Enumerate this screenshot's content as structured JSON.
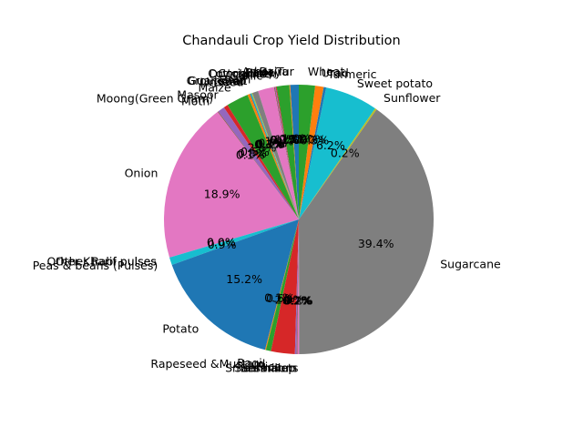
{
  "chart_data": {
    "type": "pie",
    "title": "Chandauli Crop Yield Distribution",
    "start_angle": 90,
    "direction": "counterclockwise",
    "slices": [
      {
        "label": "Arhar/Tur",
        "value": 1.0,
        "pct_label": "1.0%",
        "color": "#1f77b4"
      },
      {
        "label": "Bajra",
        "value": 0.1,
        "pct_label": "0.1%",
        "color": "#ff7f0e"
      },
      {
        "label": "Barley",
        "value": 1.5,
        "pct_label": "1.5%",
        "color": "#2ca02c"
      },
      {
        "label": "Coriander",
        "value": 0.1,
        "pct_label": "0.1%",
        "color": "#d62728"
      },
      {
        "label": "Cotton(lint)",
        "value": 0.1,
        "pct_label": "0.1%",
        "color": "#9467bd"
      },
      {
        "label": "Dry chillies",
        "value": 0.1,
        "pct_label": "0.1%",
        "color": "#8c564b"
      },
      {
        "label": "Garlic",
        "value": 1.9,
        "pct_label": "1.9%",
        "color": "#e377c2"
      },
      {
        "label": "Gram",
        "value": 0.7,
        "pct_label": "0.7%",
        "color": "#7f7f7f"
      },
      {
        "label": "Groundnut",
        "value": 0.1,
        "pct_label": "0.1%",
        "color": "#bcbd22"
      },
      {
        "label": "Guar seed",
        "value": 0.1,
        "pct_label": "0.1%",
        "color": "#17becf"
      },
      {
        "label": "Jowar",
        "value": 0.1,
        "pct_label": "0.1%",
        "color": "#1f77b4"
      },
      {
        "label": "Linseed",
        "value": 0.3,
        "pct_label": "0.3%",
        "color": "#ff7f0e"
      },
      {
        "label": "Maize",
        "value": 2.6,
        "pct_label": "2.6%",
        "color": "#2ca02c"
      },
      {
        "label": "Masoor",
        "value": 0.5,
        "pct_label": "0.5%",
        "color": "#d62728"
      },
      {
        "label": "Moong(Green Gram)",
        "value": 0.8,
        "pct_label": "0.8%",
        "color": "#9467bd"
      },
      {
        "label": "Moth",
        "value": 0.1,
        "pct_label": "0.1%",
        "color": "#8c564b"
      },
      {
        "label": "Onion",
        "value": 18.9,
        "pct_label": "18.9%",
        "color": "#e377c2"
      },
      {
        "label": "Other Kharif pulses",
        "value": 0.0,
        "pct_label": "0.0%",
        "color": "#7f7f7f"
      },
      {
        "label": "Other Rabi pulses",
        "value": 0.0,
        "pct_label": "0.0%",
        "color": "#bcbd22"
      },
      {
        "label": "Peas & beans (Pulses)",
        "value": 0.9,
        "pct_label": "0.9%",
        "color": "#17becf"
      },
      {
        "label": "Potato",
        "value": 15.2,
        "pct_label": "15.2%",
        "color": "#1f77b4"
      },
      {
        "label": "Ragi",
        "value": 0.1,
        "pct_label": "0.1%",
        "color": "#ff7f0e"
      },
      {
        "label": "Rapeseed &Mustard",
        "value": 0.6,
        "pct_label": "0.6%",
        "color": "#2ca02c"
      },
      {
        "label": "Rice",
        "value": 2.8,
        "pct_label": "2.8%",
        "color": "#d62728"
      },
      {
        "label": "Sannhamp",
        "value": 0.2,
        "pct_label": "0.2%",
        "color": "#9467bd"
      },
      {
        "label": "Sesamum",
        "value": 0.1,
        "pct_label": "0.1%",
        "color": "#8c564b"
      },
      {
        "label": "Small millets",
        "value": 0.2,
        "pct_label": "0.2%",
        "color": "#e377c2"
      },
      {
        "label": "Sugarcane",
        "value": 39.4,
        "pct_label": "39.4%",
        "color": "#7f7f7f"
      },
      {
        "label": "Sunflower",
        "value": 0.2,
        "pct_label": "0.2%",
        "color": "#bcbd22"
      },
      {
        "label": "Sweet potato",
        "value": 6.2,
        "pct_label": "6.2%",
        "color": "#17becf"
      },
      {
        "label": "Turmeric",
        "value": 0.3,
        "pct_label": "0.3%",
        "color": "#1f77b4"
      },
      {
        "label": "Urad",
        "value": 1.0,
        "pct_label": "1.0%",
        "color": "#ff7f0e"
      },
      {
        "label": "Wheat",
        "value": 1.9,
        "pct_label": "1.9%",
        "color": "#2ca02c"
      }
    ]
  }
}
